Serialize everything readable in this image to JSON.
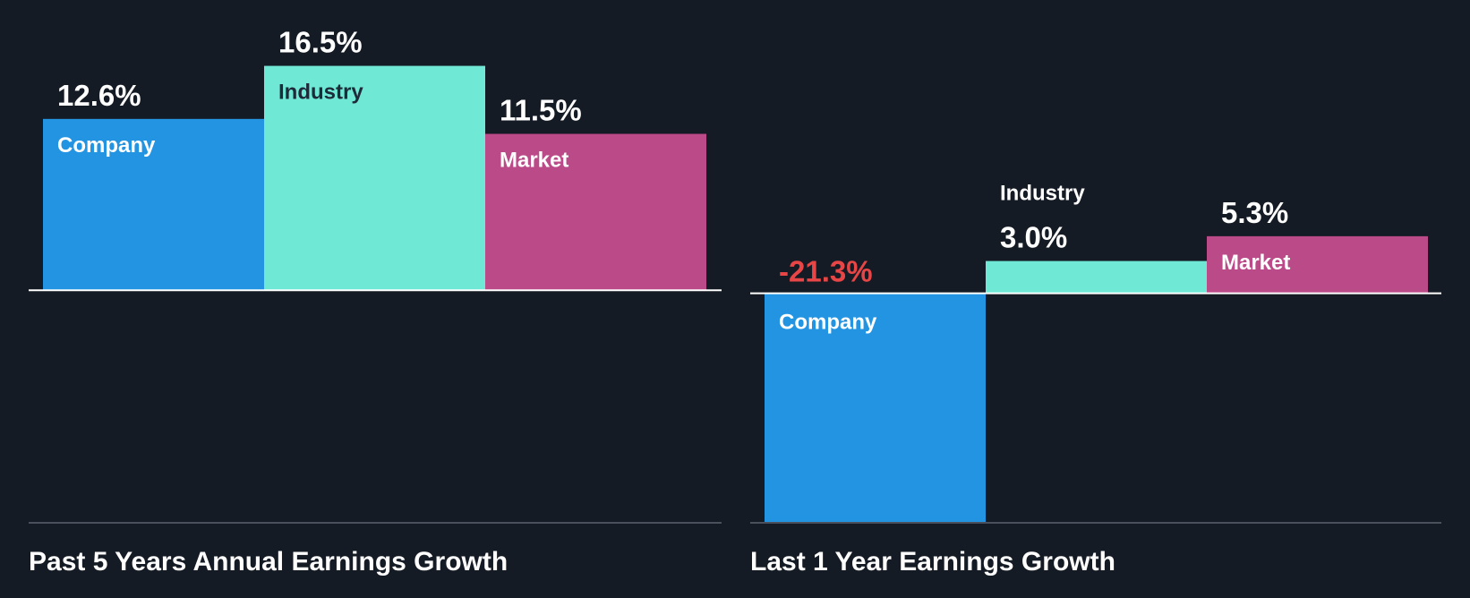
{
  "chart_data": [
    {
      "type": "bar",
      "title": "Past 5 Years Annual Earnings Growth",
      "categories": [
        "Company",
        "Industry",
        "Market"
      ],
      "values": [
        12.6,
        16.5,
        11.5
      ],
      "value_labels": [
        "12.6%",
        "16.5%",
        "11.5%"
      ],
      "ylim": [
        -17.1,
        19.5
      ],
      "colors": [
        "#2394e2",
        "#6fe8d6",
        "#bb4a88"
      ],
      "label_colors": [
        "#ffffff",
        "#1e2a38",
        "#ffffff"
      ],
      "value_colors": [
        "#ffffff",
        "#ffffff",
        "#ffffff"
      ]
    },
    {
      "type": "bar",
      "title": "Last 1 Year Earnings Growth",
      "categories": [
        "Company",
        "Industry",
        "Market"
      ],
      "values": [
        -21.3,
        3.0,
        5.3
      ],
      "value_labels": [
        "-21.3%",
        "3.0%",
        "5.3%"
      ],
      "ylim": [
        -21.3,
        24.9
      ],
      "colors": [
        "#2394e2",
        "#6fe8d6",
        "#bb4a88"
      ],
      "label_colors": [
        "#ffffff",
        "#ffffff",
        "#ffffff"
      ],
      "value_colors": [
        "#e84646",
        "#ffffff",
        "#ffffff"
      ]
    }
  ]
}
